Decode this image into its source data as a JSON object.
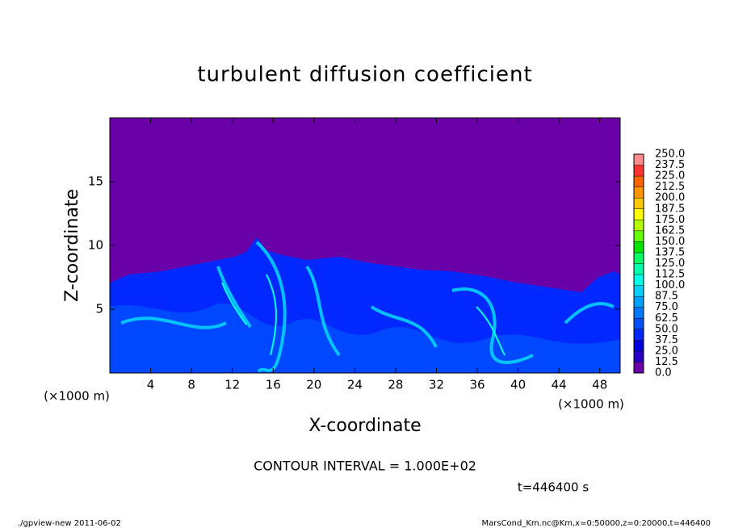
{
  "chart_data": {
    "type": "contour",
    "title": "turbulent diffusion coefficient",
    "xlabel": "X-coordinate",
    "ylabel": "Z-coordinate",
    "xunit": "(×1000 m)",
    "xlim": [
      0,
      50
    ],
    "ylim": [
      0,
      20
    ],
    "xticks": [
      4,
      8,
      12,
      16,
      20,
      24,
      28,
      32,
      36,
      40,
      44,
      48
    ],
    "yticks": [
      5,
      10,
      15
    ],
    "levels": [
      {
        "value": 0,
        "label": "0.0"
      },
      {
        "value": 12.5,
        "label": "12.5"
      },
      {
        "value": 25,
        "label": "25.0"
      },
      {
        "value": 37.5,
        "label": "37.5"
      },
      {
        "value": 50,
        "label": "50.0"
      },
      {
        "value": 62.5,
        "label": "62.5"
      },
      {
        "value": 75,
        "label": "75.0"
      },
      {
        "value": 87.5,
        "label": "87.5"
      },
      {
        "value": 100,
        "label": "100.0"
      },
      {
        "value": 112.5,
        "label": "112.5"
      },
      {
        "value": 125,
        "label": "125.0"
      },
      {
        "value": 137.5,
        "label": "137.5"
      },
      {
        "value": 150,
        "label": "150.0"
      },
      {
        "value": 162.5,
        "label": "162.5"
      },
      {
        "value": 175,
        "label": "175.0"
      },
      {
        "value": 187.5,
        "label": "187.5"
      },
      {
        "value": 200,
        "label": "200.0"
      },
      {
        "value": 212.5,
        "label": "212.5"
      },
      {
        "value": 225,
        "label": "225.0"
      },
      {
        "value": 237.5,
        "label": "237.5"
      },
      {
        "value": 250,
        "label": "250.0"
      }
    ],
    "colors": [
      "#6a00a8",
      "#2800c8",
      "#0000e0",
      "#0028ff",
      "#0050ff",
      "#0078ff",
      "#00a0ff",
      "#00d2ff",
      "#00ffe6",
      "#00ffaa",
      "#00ff64",
      "#00e600",
      "#64ff00",
      "#b4ff00",
      "#ffff00",
      "#ffc800",
      "#ff9600",
      "#ff6400",
      "#ff3232",
      "#ff8c8c"
    ],
    "contour_note": "CONTOUR INTERVAL = 1.000E+02",
    "time_label": "t=446400 s",
    "footer_left": "./gpview-new  2011-06-02",
    "footer_right": "MarsCond_Km.nc@Km,x=0:50000,z=0:20000,t=446400"
  }
}
